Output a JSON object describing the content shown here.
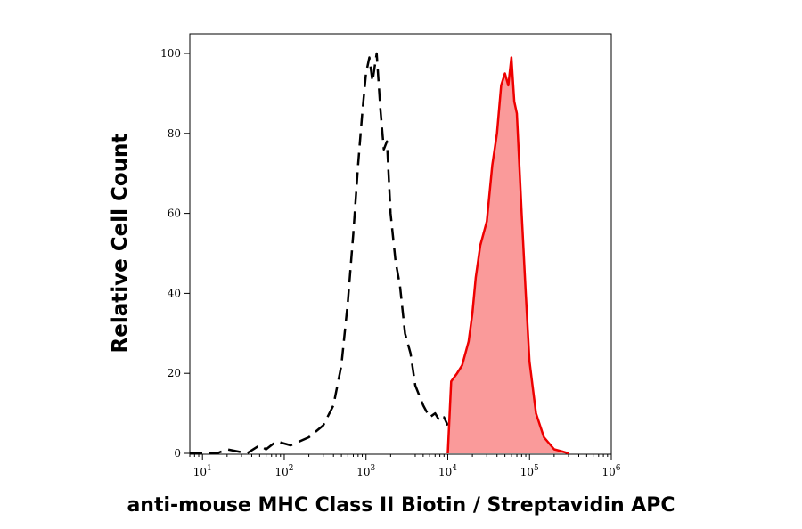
{
  "chart_data": {
    "type": "area",
    "title": "",
    "xlabel": "anti-mouse MHC Class II Biotin / Streptavidin APC",
    "ylabel": "Relative Cell Count",
    "xscale": "log",
    "xlim": [
      7,
      1000000
    ],
    "ylim": [
      0,
      100
    ],
    "grid": false,
    "legend": "none",
    "y_ticks": [
      "0",
      "20",
      "40",
      "60",
      "80",
      "100"
    ],
    "x_ticks": [
      {
        "base": "10",
        "exp": "1"
      },
      {
        "base": "10",
        "exp": "2"
      },
      {
        "base": "10",
        "exp": "3"
      },
      {
        "base": "10",
        "exp": "4"
      },
      {
        "base": "10",
        "exp": "5"
      },
      {
        "base": "10",
        "exp": "6"
      }
    ],
    "series": [
      {
        "style": "dashed-outline",
        "color": "#000000",
        "x": [
          7,
          15,
          20,
          35,
          50,
          60,
          80,
          120,
          200,
          300,
          400,
          500,
          600,
          700,
          800,
          900,
          1000,
          1100,
          1200,
          1350,
          1500,
          1650,
          1800,
          2000,
          2300,
          2600,
          3000,
          3500,
          4000,
          5000,
          6000,
          7000,
          8000,
          9000,
          10000
        ],
        "y": [
          0,
          0,
          1,
          0,
          2,
          1,
          3,
          2,
          4,
          7,
          12,
          22,
          38,
          55,
          72,
          85,
          95,
          99,
          93,
          100,
          86,
          76,
          78,
          60,
          48,
          42,
          30,
          25,
          17,
          12,
          9,
          10,
          8,
          9,
          7
        ]
      },
      {
        "style": "filled",
        "color": "#ee0000",
        "fill": "#fa9a9a",
        "x": [
          10000,
          11000,
          13000,
          15000,
          18000,
          20000,
          22000,
          25000,
          30000,
          35000,
          40000,
          45000,
          50000,
          55000,
          60000,
          65000,
          70000,
          80000,
          90000,
          100000,
          120000,
          150000,
          200000,
          250000,
          300000
        ],
        "y": [
          0,
          18,
          20,
          22,
          28,
          35,
          44,
          52,
          58,
          72,
          80,
          92,
          95,
          92,
          99,
          88,
          85,
          60,
          40,
          23,
          10,
          4,
          1,
          0.5,
          0
        ]
      }
    ]
  }
}
